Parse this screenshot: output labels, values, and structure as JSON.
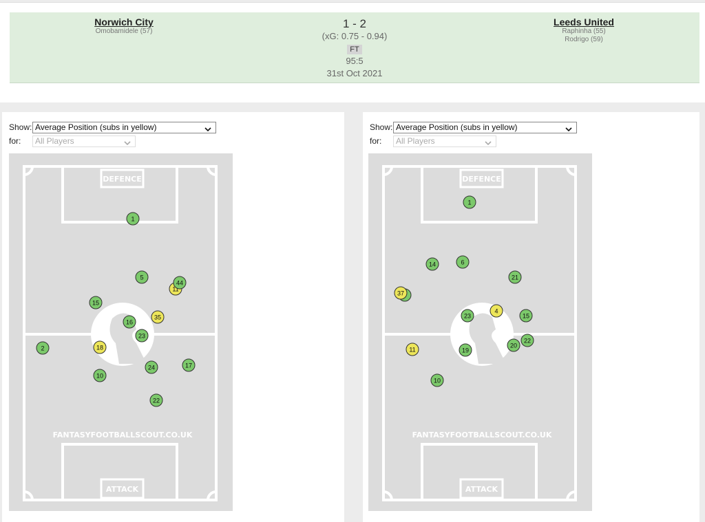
{
  "header": {
    "home": {
      "name": "Norwich City",
      "scorers": [
        "Omobamidele (57)"
      ]
    },
    "away": {
      "name": "Leeds United",
      "scorers": [
        "Raphinha (55)",
        "Rodrigo (59)"
      ]
    },
    "score": "1 - 2",
    "xg": "(xG:  0.75 - 0.94)",
    "status": "FT",
    "time": "95:5",
    "date": "31st Oct 2021"
  },
  "panels": [
    {
      "show_label": "Show:",
      "show_value": "Average Position (subs in yellow)",
      "for_label": "for:",
      "for_value": "All Players",
      "pitch": {
        "top": "DEFENCE",
        "bottom": "ATTACK",
        "watermark": "FANTASYFOOTBALLSCOUT.CO.UK"
      },
      "players": [
        {
          "number": "1",
          "sub": false
        },
        {
          "number": "5",
          "sub": false
        },
        {
          "number": "11",
          "sub": true
        },
        {
          "number": "44",
          "sub": false
        },
        {
          "number": "15",
          "sub": false
        },
        {
          "number": "35",
          "sub": true
        },
        {
          "number": "16",
          "sub": false
        },
        {
          "number": "23",
          "sub": false
        },
        {
          "number": "2",
          "sub": false
        },
        {
          "number": "18",
          "sub": true
        },
        {
          "number": "24",
          "sub": false
        },
        {
          "number": "17",
          "sub": false
        },
        {
          "number": "10",
          "sub": false
        },
        {
          "number": "22",
          "sub": false
        }
      ]
    },
    {
      "show_label": "Show:",
      "show_value": "Average Position (subs in yellow)",
      "for_label": "for:",
      "for_value": "All Players",
      "pitch": {
        "top": "DEFENCE",
        "bottom": "ATTACK",
        "watermark": "FANTASYFOOTBALLSCOUT.CO.UK"
      },
      "players": [
        {
          "number": "1",
          "sub": false
        },
        {
          "number": "14",
          "sub": false
        },
        {
          "number": "6",
          "sub": false
        },
        {
          "number": "21",
          "sub": false
        },
        {
          "number": "37",
          "sub": true
        },
        {
          "number": "4",
          "sub": true
        },
        {
          "number": "23",
          "sub": false
        },
        {
          "number": "15",
          "sub": false
        },
        {
          "number": "20",
          "sub": false
        },
        {
          "number": "22",
          "sub": false
        },
        {
          "number": "11",
          "sub": true
        },
        {
          "number": "19",
          "sub": false
        },
        {
          "number": "10",
          "sub": false
        }
      ]
    }
  ]
}
